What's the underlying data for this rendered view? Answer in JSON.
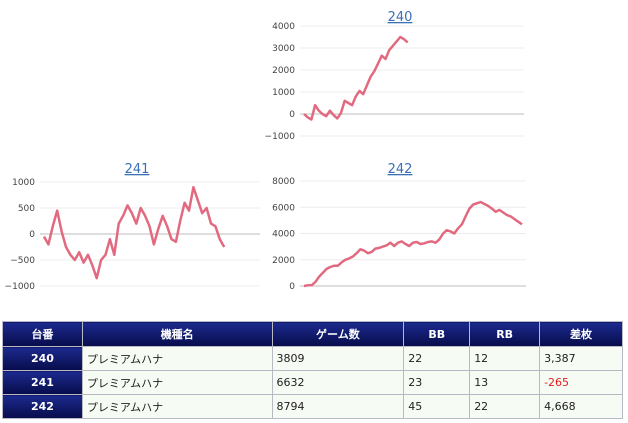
{
  "colors": {
    "line": "#e26a80",
    "header_bg": "#0f1870",
    "title_link": "#3b6fb6",
    "negative": "#e02020"
  },
  "chart_data": [
    {
      "type": "line",
      "title": "240",
      "yticks": [
        "4000",
        "3000",
        "2000",
        "1000",
        "0",
        "−1000"
      ],
      "ylim": [
        -1000,
        4000
      ],
      "y": [
        0,
        -150,
        -250,
        400,
        150,
        0,
        -100,
        150,
        -50,
        -200,
        50,
        600,
        500,
        400,
        800,
        1050,
        900,
        1300,
        1700,
        1950,
        2300,
        2650,
        2500,
        2900,
        3100,
        3300,
        3500,
        3400,
        3250
      ]
    },
    {
      "type": "line",
      "title": "241",
      "yticks": [
        "1000",
        "500",
        "0",
        "−500",
        "−1000"
      ],
      "ylim": [
        -1000,
        1000
      ],
      "y": [
        -50,
        -200,
        150,
        450,
        50,
        -250,
        -400,
        -500,
        -350,
        -550,
        -400,
        -600,
        -850,
        -500,
        -400,
        -100,
        -400,
        200,
        350,
        550,
        400,
        200,
        500,
        350,
        150,
        -200,
        100,
        350,
        150,
        -100,
        -150,
        250,
        600,
        450,
        900,
        650,
        400,
        500,
        200,
        150,
        -100,
        -250
      ]
    },
    {
      "type": "line",
      "title": "242",
      "yticks": [
        "8000",
        "6000",
        "4000",
        "2000",
        "0"
      ],
      "ylim": [
        0,
        8000
      ],
      "y": [
        0,
        50,
        50,
        300,
        700,
        1000,
        1300,
        1450,
        1550,
        1550,
        1800,
        2000,
        2100,
        2250,
        2500,
        2800,
        2700,
        2500,
        2600,
        2850,
        2900,
        3000,
        3100,
        3300,
        3050,
        3300,
        3400,
        3200,
        3050,
        3300,
        3350,
        3200,
        3250,
        3350,
        3400,
        3300,
        3550,
        4000,
        4250,
        4150,
        4000,
        4400,
        4700,
        5300,
        5900,
        6200,
        6300,
        6400,
        6250,
        6100,
        5900,
        5650,
        5800,
        5600,
        5400,
        5300,
        5100,
        4900,
        4700
      ]
    }
  ],
  "table": {
    "headers": [
      "台番",
      "機種名",
      "ゲーム数",
      "BB",
      "RB",
      "差枚"
    ],
    "rows": [
      {
        "no": "240",
        "machine": "プレミアムハナ",
        "games": "3809",
        "bb": "22",
        "rb": "12",
        "diff": "3,387",
        "neg": false
      },
      {
        "no": "241",
        "machine": "プレミアムハナ",
        "games": "6632",
        "bb": "23",
        "rb": "13",
        "diff": "-265",
        "neg": true
      },
      {
        "no": "242",
        "machine": "プレミアムハナ",
        "games": "8794",
        "bb": "45",
        "rb": "22",
        "diff": "4,668",
        "neg": false
      }
    ]
  }
}
